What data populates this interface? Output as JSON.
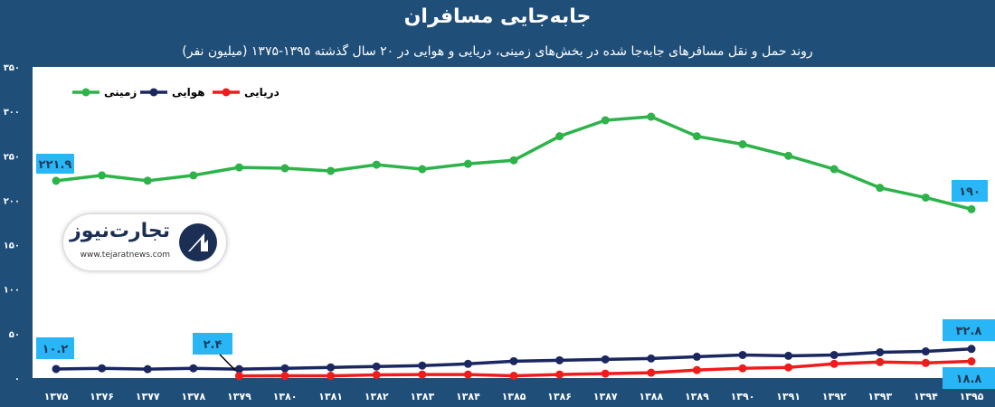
{
  "title": "جابه‌جایی مسافران",
  "subtitle": "روند حمل و نقل  مسافرهای جابه‌جا شده در بخش‌های زمینی، دریایی و هوایی در ۲۰ سال گذشته ۱۳۹۵-۱۳۷۵ (میلیون نفر)",
  "colors": {
    "background": "#1f4e79",
    "land": "#2db34a",
    "air": "#1a2760",
    "sea": "#ee1c1c",
    "label_box": "#29b6f6"
  },
  "logo": {
    "name": "تجارت‌نیوز",
    "url": "www.tejaratnews.com"
  },
  "chart_data": {
    "type": "line",
    "title": "",
    "xlabel": "",
    "ylabel": "",
    "ylim": [
      0,
      350
    ],
    "yticks": [
      0,
      50,
      100,
      150,
      200,
      250,
      300,
      350
    ],
    "ytick_labels": [
      "۰",
      "۵۰",
      "۱۰۰",
      "۱۵۰",
      "۲۰۰",
      "۲۵۰",
      "۳۰۰",
      "۳۵۰"
    ],
    "grid": false,
    "legend_position": "top-left",
    "categories": [
      "۱۳۷۵",
      "۱۳۷۶",
      "۱۳۷۷",
      "۱۳۷۸",
      "۱۳۷۹",
      "۱۳۸۰",
      "۱۳۸۱",
      "۱۳۸۲",
      "۱۳۸۳",
      "۱۳۸۴",
      "۱۳۸۵",
      "۱۳۸۶",
      "۱۳۸۷",
      "۱۳۸۸",
      "۱۳۸۹",
      "۱۳۹۰",
      "۱۳۹۱",
      "۱۳۹۲",
      "۱۳۹۳",
      "۱۳۹۴",
      "۱۳۹۵"
    ],
    "series": [
      {
        "name": "زمینی",
        "color": "#2db34a",
        "values": [
          221.9,
          228,
          222,
          228,
          237,
          236,
          233,
          240,
          235,
          241,
          245,
          272,
          290,
          294,
          272,
          263,
          250,
          235,
          214,
          203,
          190
        ]
      },
      {
        "name": "هوایی",
        "color": "#1a2760",
        "values": [
          10.2,
          11,
          10,
          11,
          10,
          11,
          12,
          13,
          14,
          16,
          19,
          20,
          21,
          22,
          24,
          26,
          25,
          26,
          29,
          30,
          32.8
        ]
      },
      {
        "name": "دریایی",
        "color": "#ee1c1c",
        "values": [
          null,
          null,
          null,
          null,
          2.4,
          2.5,
          2.5,
          3.5,
          4,
          4,
          2.5,
          4,
          5,
          6,
          9,
          11,
          12,
          16,
          18,
          17,
          18.8
        ]
      }
    ],
    "data_labels": [
      {
        "series": 0,
        "index": 0,
        "text": "۲۲۱.۹"
      },
      {
        "series": 0,
        "index": 20,
        "text": "۱۹۰"
      },
      {
        "series": 1,
        "index": 0,
        "text": "۱۰.۲"
      },
      {
        "series": 1,
        "index": 20,
        "text": "۳۲.۸"
      },
      {
        "series": 2,
        "index": 4,
        "text": "۲.۴"
      },
      {
        "series": 2,
        "index": 20,
        "text": "۱۸.۸"
      }
    ]
  }
}
